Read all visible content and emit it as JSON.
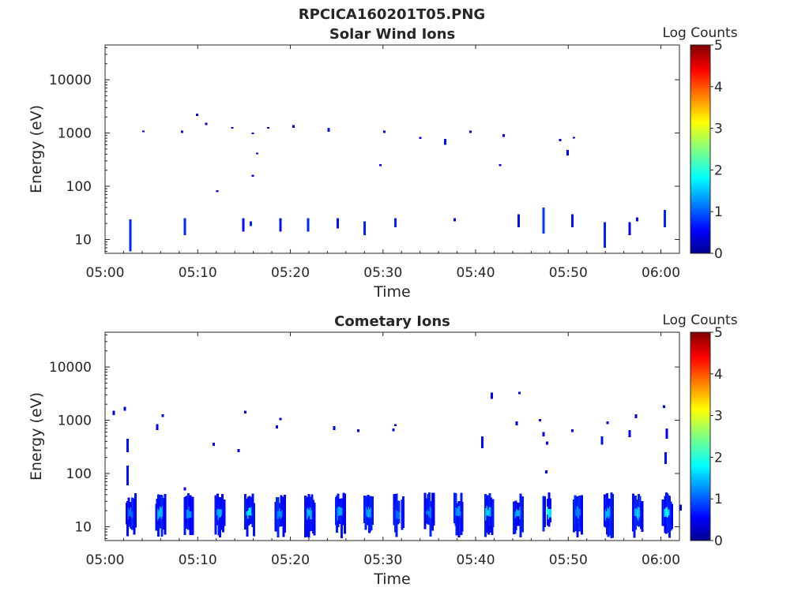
{
  "figure": {
    "title": "RPCICA160201T05.PNG"
  },
  "chart_data": [
    {
      "type": "heatmap",
      "title": "Solar Wind Ions",
      "xlabel": "Time",
      "ylabel": "Energy (eV)",
      "x_ticks": [
        "05:00",
        "05:10",
        "05:20",
        "05:30",
        "05:40",
        "05:50",
        "06:00"
      ],
      "x_range_minutes": [
        0,
        62
      ],
      "y_scale": "log",
      "y_range": [
        5.5,
        45000
      ],
      "y_ticks": [
        10,
        100,
        1000,
        10000
      ],
      "colorbar": {
        "label": "Log Counts",
        "range": [
          0,
          5
        ],
        "ticks": [
          0,
          1,
          2,
          3,
          4,
          5
        ],
        "colormap": "jet"
      },
      "grid": false,
      "cells": [
        [
          2.6,
          6,
          24,
          0.8
        ],
        [
          8.5,
          12,
          25,
          0.8
        ],
        [
          14.8,
          14,
          25,
          0.7
        ],
        [
          15.6,
          18,
          22,
          0.8
        ],
        [
          18.8,
          14,
          25,
          0.7
        ],
        [
          21.8,
          14,
          25,
          0.8
        ],
        [
          25.0,
          16,
          25,
          0.7
        ],
        [
          27.9,
          12,
          22,
          0.8
        ],
        [
          31.2,
          17,
          25,
          0.8
        ],
        [
          37.6,
          22,
          25,
          0.6
        ],
        [
          44.5,
          17,
          30,
          0.7
        ],
        [
          47.2,
          13,
          40,
          0.9
        ],
        [
          50.3,
          17,
          30,
          0.7
        ],
        [
          53.8,
          7,
          21,
          0.8
        ],
        [
          56.5,
          12,
          21,
          0.6
        ],
        [
          57.3,
          22,
          26,
          0.6
        ],
        [
          60.3,
          17,
          36,
          0.8
        ],
        [
          4.0,
          1050,
          1100,
          0.5
        ],
        [
          8.2,
          1000,
          1100,
          0.6
        ],
        [
          9.8,
          2100,
          2300,
          0.5
        ],
        [
          10.8,
          1400,
          1550,
          0.5
        ],
        [
          12.0,
          78,
          85,
          0.5
        ],
        [
          13.6,
          1200,
          1300,
          0.5
        ],
        [
          15.8,
          950,
          1020,
          0.5
        ],
        [
          15.8,
          150,
          165,
          0.5
        ],
        [
          16.3,
          400,
          430,
          0.5
        ],
        [
          17.5,
          1200,
          1300,
          0.5
        ],
        [
          20.2,
          1250,
          1400,
          0.6
        ],
        [
          24.0,
          1050,
          1250,
          0.7
        ],
        [
          29.6,
          240,
          260,
          0.5
        ],
        [
          30.0,
          1000,
          1100,
          0.5
        ],
        [
          33.9,
          780,
          840,
          0.5
        ],
        [
          36.6,
          600,
          780,
          0.7
        ],
        [
          39.3,
          1000,
          1100,
          0.5
        ],
        [
          42.5,
          240,
          260,
          0.5
        ],
        [
          42.9,
          850,
          950,
          0.6
        ],
        [
          49.0,
          700,
          780,
          0.5
        ],
        [
          49.8,
          380,
          480,
          0.6
        ],
        [
          50.5,
          790,
          840,
          0.5
        ]
      ]
    },
    {
      "type": "heatmap",
      "title": "Cometary Ions",
      "xlabel": "Time",
      "ylabel": "Energy (eV)",
      "x_ticks": [
        "05:00",
        "05:10",
        "05:20",
        "05:30",
        "05:40",
        "05:50",
        "06:00"
      ],
      "x_range_minutes": [
        0,
        62
      ],
      "y_scale": "log",
      "y_range": [
        5.5,
        45000
      ],
      "y_ticks": [
        10,
        100,
        1000,
        10000
      ],
      "colorbar": {
        "label": "Log Counts",
        "range": [
          0,
          5
        ],
        "ticks": [
          0,
          1,
          2,
          3,
          4,
          5
        ],
        "colormap": "jet"
      },
      "grid": false,
      "bursts": [
        2.7,
        5.9,
        9.0,
        12.3,
        15.5,
        18.8,
        22.0,
        25.3,
        28.4,
        31.6,
        34.9,
        38.1,
        41.3,
        44.5,
        47.7,
        51.0,
        54.2,
        57.4,
        60.6
      ],
      "burst_peaks": [
        1.2,
        1.6,
        1.4,
        1.5,
        1.8,
        1.4,
        1.6,
        1.5,
        1.5,
        1.2,
        1.3,
        1.4,
        1.7,
        1.5,
        2.0,
        1.3,
        1.6,
        1.7,
        1.9
      ],
      "cells": [
        [
          0.8,
          1250,
          1500,
          0.5
        ],
        [
          2.0,
          1500,
          1800,
          0.5
        ],
        [
          2.3,
          250,
          450,
          0.7
        ],
        [
          2.3,
          60,
          140,
          0.7
        ],
        [
          5.5,
          650,
          850,
          0.6
        ],
        [
          6.1,
          1150,
          1300,
          0.5
        ],
        [
          8.5,
          48,
          55,
          0.5
        ],
        [
          11.6,
          330,
          380,
          0.5
        ],
        [
          14.3,
          250,
          290,
          0.5
        ],
        [
          15.0,
          1350,
          1500,
          0.5
        ],
        [
          18.4,
          700,
          800,
          0.5
        ],
        [
          18.8,
          1000,
          1100,
          0.5
        ],
        [
          24.6,
          650,
          780,
          0.6
        ],
        [
          27.2,
          600,
          680,
          0.5
        ],
        [
          31.0,
          620,
          700,
          0.5
        ],
        [
          31.2,
          780,
          850,
          0.5
        ],
        [
          40.6,
          300,
          500,
          0.7
        ],
        [
          41.6,
          2500,
          3300,
          0.6
        ],
        [
          44.6,
          3100,
          3400,
          0.5
        ],
        [
          44.3,
          800,
          950,
          0.5
        ],
        [
          46.8,
          950,
          1050,
          0.5
        ],
        [
          47.2,
          500,
          600,
          0.6
        ],
        [
          47.5,
          100,
          115,
          0.5
        ],
        [
          47.6,
          350,
          400,
          0.5
        ],
        [
          50.3,
          600,
          680,
          0.5
        ],
        [
          53.5,
          350,
          500,
          0.7
        ],
        [
          54.1,
          850,
          950,
          0.5
        ],
        [
          56.5,
          480,
          650,
          0.6
        ],
        [
          57.2,
          1100,
          1300,
          0.5
        ],
        [
          60.2,
          1700,
          1900,
          0.5
        ],
        [
          60.5,
          450,
          700,
          0.6
        ],
        [
          60.4,
          150,
          250,
          0.7
        ],
        [
          62.0,
          20,
          26,
          0.6
        ]
      ]
    }
  ]
}
